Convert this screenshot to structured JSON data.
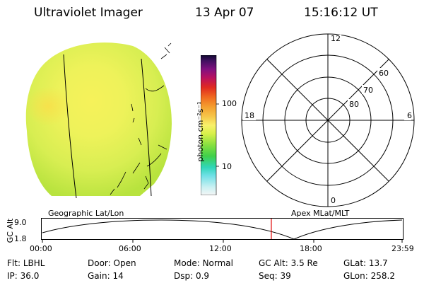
{
  "header": {
    "instrument": "Ultraviolet Imager",
    "date": "13 Apr 07",
    "time": "15:16:12 UT"
  },
  "colorbar": {
    "unit_label": "photon cm⁻²s⁻¹",
    "tick_100": "100",
    "tick_10": "10"
  },
  "polar_plot": {
    "mlt_labels": {
      "top": "12",
      "left": "18",
      "right": "6",
      "bottom": "0"
    },
    "lat_labels": [
      "60",
      "70",
      "80"
    ]
  },
  "timeline": {
    "left_title": "Geographic Lat/Lon",
    "right_title": "Apex MLat/MLT",
    "y_axis_label": "GC Alt",
    "y_ticks": [
      "9.0",
      "1.8"
    ],
    "x_ticks": [
      "00:00",
      "06:00",
      "12:00",
      "18:00",
      "23:59"
    ],
    "current_time_fraction": 0.6364
  },
  "info_rows": [
    [
      {
        "label": "Flt:",
        "value": "LBHL"
      },
      {
        "label": "Door:",
        "value": "Open"
      },
      {
        "label": "Mode:",
        "value": "Normal"
      },
      {
        "label": "GC Alt:",
        "value": "3.5 Re"
      },
      {
        "label": "GLat:",
        "value": "13.7"
      }
    ],
    [
      {
        "label": "IP:",
        "value": "36.0"
      },
      {
        "label": "Gain:",
        "value": "14"
      },
      {
        "label": "Dsp:",
        "value": "0.9"
      },
      {
        "label": "Seq:",
        "value": "39"
      },
      {
        "label": "GLon:",
        "value": "258.2"
      }
    ]
  ],
  "colors": {
    "current_time_marker": "#e00000"
  }
}
